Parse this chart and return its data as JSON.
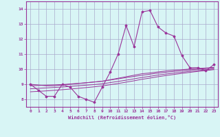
{
  "x": [
    0,
    1,
    2,
    3,
    4,
    5,
    6,
    7,
    8,
    9,
    10,
    11,
    12,
    13,
    14,
    15,
    16,
    17,
    18,
    19,
    20,
    21,
    22,
    23
  ],
  "y_main": [
    9.0,
    8.6,
    8.2,
    8.2,
    9.0,
    8.8,
    8.2,
    8.0,
    7.8,
    8.8,
    9.8,
    11.0,
    12.9,
    11.5,
    13.8,
    13.9,
    12.8,
    12.4,
    12.2,
    10.9,
    10.1,
    10.1,
    9.9,
    10.3
  ],
  "y_line1": [
    9.0,
    8.95,
    8.9,
    8.9,
    8.95,
    9.0,
    9.05,
    9.1,
    9.15,
    9.2,
    9.3,
    9.4,
    9.5,
    9.6,
    9.7,
    9.75,
    9.82,
    9.88,
    9.93,
    9.97,
    10.01,
    10.05,
    10.08,
    10.12
  ],
  "y_line2": [
    8.9,
    8.92,
    8.94,
    8.96,
    8.98,
    9.02,
    9.06,
    9.1,
    9.15,
    9.2,
    9.28,
    9.36,
    9.44,
    9.52,
    9.6,
    9.67,
    9.74,
    9.8,
    9.85,
    9.9,
    9.95,
    10.0,
    10.04,
    10.08
  ],
  "y_line3": [
    8.7,
    8.73,
    8.76,
    8.79,
    8.82,
    8.86,
    8.9,
    8.94,
    8.98,
    9.03,
    9.11,
    9.19,
    9.27,
    9.36,
    9.45,
    9.53,
    9.61,
    9.68,
    9.74,
    9.8,
    9.86,
    9.91,
    9.96,
    10.01
  ],
  "y_line4": [
    8.5,
    8.53,
    8.56,
    8.6,
    8.64,
    8.68,
    8.73,
    8.78,
    8.83,
    8.89,
    8.97,
    9.05,
    9.14,
    9.23,
    9.33,
    9.41,
    9.5,
    9.58,
    9.65,
    9.72,
    9.79,
    9.85,
    9.91,
    9.97
  ],
  "color": "#993399",
  "bg_color": "#d8f5f5",
  "grid_color": "#aaaacc",
  "xlabel": "Windchill (Refroidissement éolien,°C)",
  "xlim": [
    -0.5,
    23.5
  ],
  "ylim": [
    7.5,
    14.5
  ],
  "yticks": [
    8,
    9,
    10,
    11,
    12,
    13,
    14
  ],
  "xticks": [
    0,
    1,
    2,
    3,
    4,
    5,
    6,
    7,
    8,
    9,
    10,
    11,
    12,
    13,
    14,
    15,
    16,
    17,
    18,
    19,
    20,
    21,
    22,
    23
  ]
}
